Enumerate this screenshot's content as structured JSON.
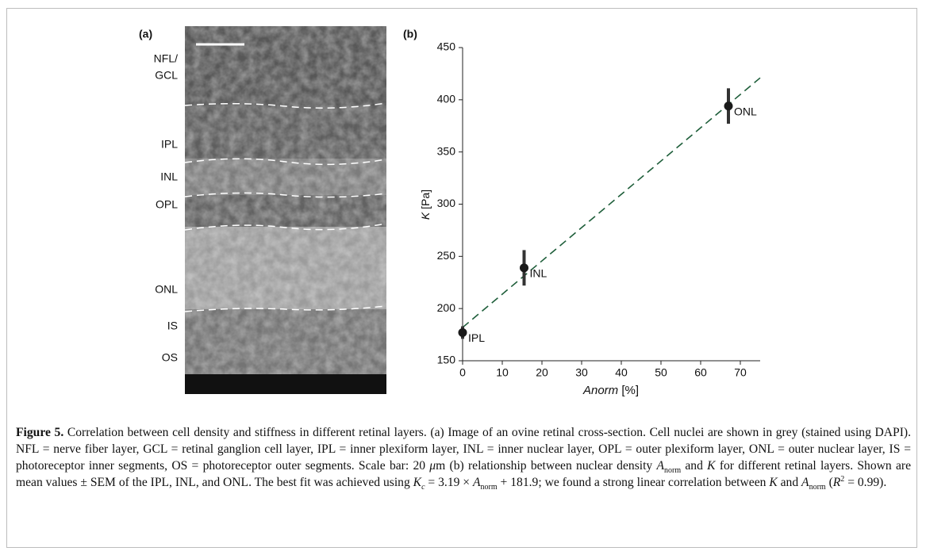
{
  "image_panel": {
    "label": "(a)",
    "layers": [
      "NFL/",
      "GCL",
      "IPL",
      "INL",
      "OPL",
      "ONL",
      "IS",
      "OS"
    ]
  },
  "chart_data": {
    "type": "scatter",
    "panel_label": "(b)",
    "xlabel": [
      "Anorm",
      " [%]"
    ],
    "ylabel": [
      "K",
      " [Pa]"
    ],
    "x": [
      0,
      15.5,
      67
    ],
    "values": [
      177,
      239,
      394
    ],
    "errors": [
      6,
      17,
      17
    ],
    "labels": [
      "IPL",
      "INL",
      "ONL"
    ],
    "color": "#1a1a1a",
    "fit": {
      "x": [
        0,
        75
      ],
      "values": [
        181.9,
        421
      ],
      "color": "#1e5e3a"
    },
    "xlim": [
      0,
      75
    ],
    "xticks": [
      0,
      10,
      20,
      30,
      40,
      50,
      60,
      70
    ],
    "ylim": [
      150,
      450
    ],
    "yticks": [
      150,
      200,
      250,
      300,
      350,
      400,
      450
    ]
  },
  "caption": {
    "label": "Figure 5.",
    "parts": [
      " Correlation between cell density and stiffness in different retinal layers. (a) Image of an ovine retinal cross-section. Cell nuclei are shown in grey (stained using DAPI). NFL = nerve fiber layer, GCL = retinal ganglion cell layer, IPL = inner plexiform layer, INL = inner nuclear layer, OPL = outer plexiform layer, ONL = outer nuclear layer, IS = photoreceptor inner segments, OS = photoreceptor outer segments. Scale bar: 20 ",
      "μ",
      "m (b) relationship between nuclear density ",
      "A",
      "norm",
      " and ",
      "K",
      " for different retinal layers. Shown are mean values ± SEM of the IPL, INL, and ONL. The best fit was achieved using ",
      "K",
      "c",
      " = 3.19 × ",
      "A",
      "norm",
      " + 181.9; we found a strong linear correlation between ",
      "K",
      " and ",
      "A",
      "norm",
      " (",
      "R",
      "2",
      " = 0.99)."
    ]
  }
}
